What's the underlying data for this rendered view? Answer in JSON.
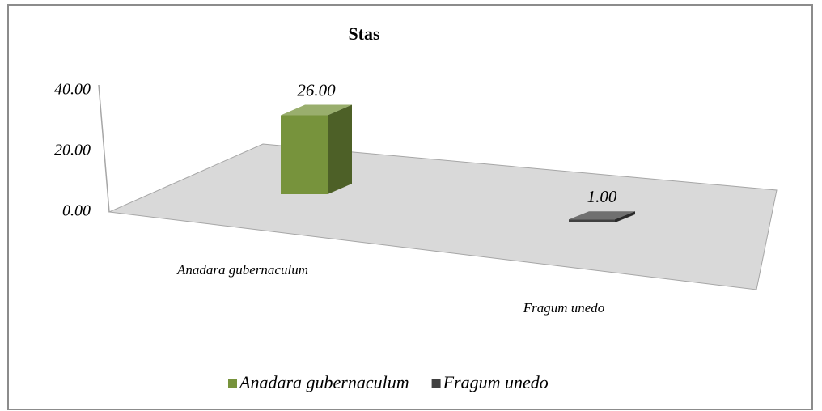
{
  "chart_data": {
    "type": "bar3d",
    "title": "Stas",
    "categories": [
      "Anadara gubernaculum",
      "Fragum unedo"
    ],
    "series": [
      {
        "name": "Anadara gubernaculum",
        "color": "#77933c",
        "values": [
          26,
          null
        ],
        "value_labels": [
          "26.00",
          null
        ]
      },
      {
        "name": "Fragum unedo",
        "color": "#404040",
        "values": [
          null,
          1
        ],
        "value_labels": [
          null,
          "1.00"
        ]
      }
    ],
    "ylim": [
      0,
      40
    ],
    "yticks": [
      {
        "value": 0,
        "label": "0.00"
      },
      {
        "value": 20,
        "label": "20.00"
      },
      {
        "value": 40,
        "label": "40.00"
      }
    ],
    "legend": "bottom"
  }
}
